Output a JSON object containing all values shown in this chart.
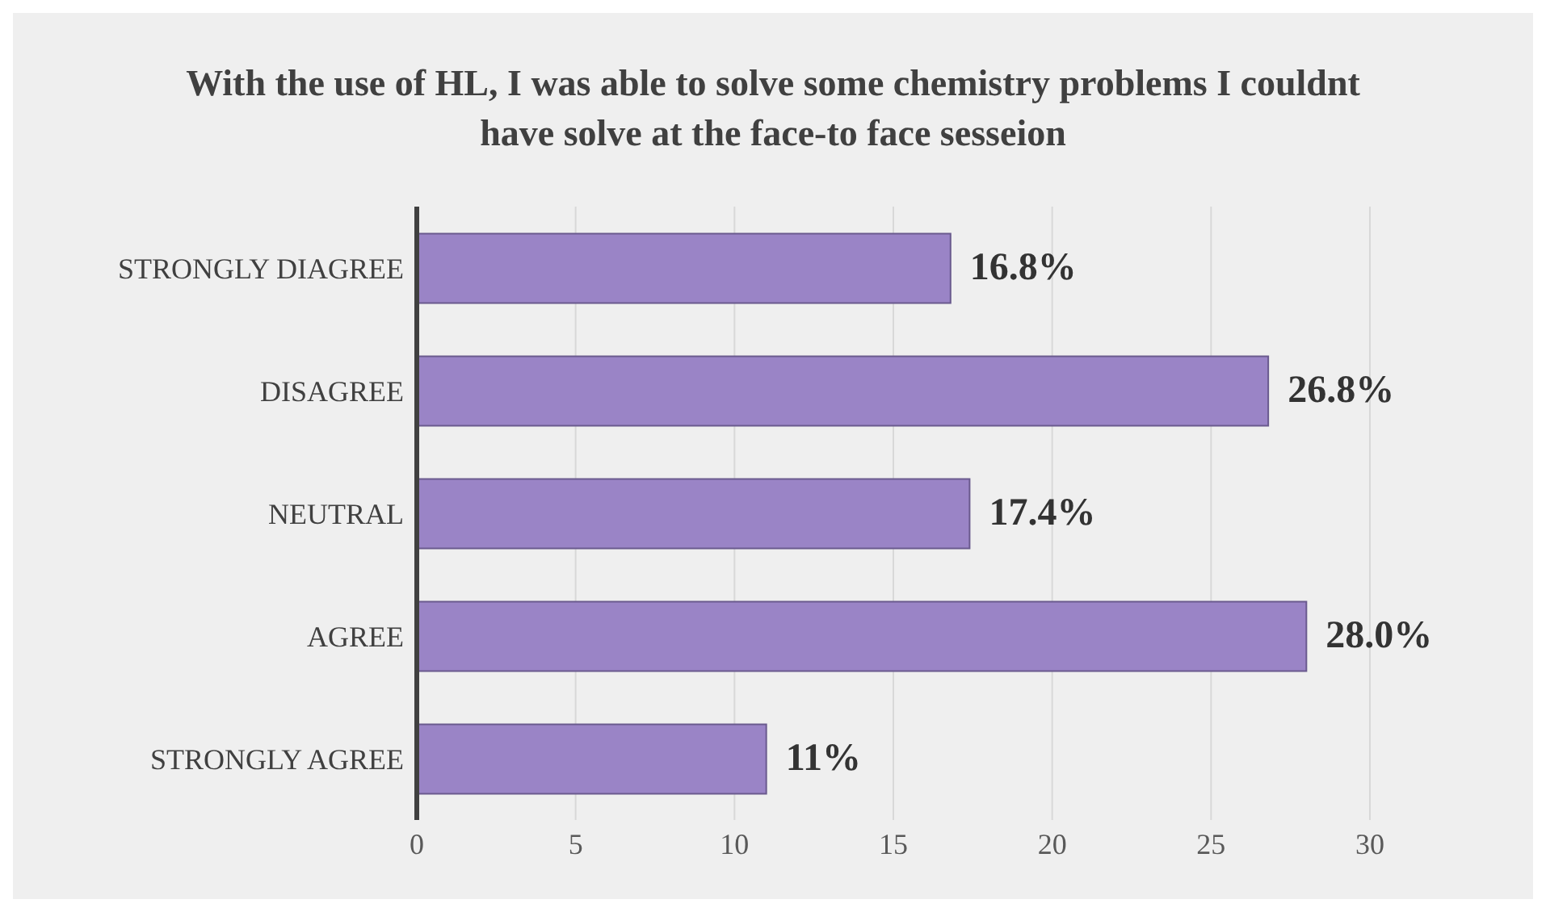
{
  "chart_data": {
    "type": "bar",
    "orientation": "horizontal",
    "title": "With the  use of HL, I was able to solve some chemistry problems I couldnt have solve at the face-to face sesseion",
    "categories": [
      "STRONGLY DIAGREE",
      "DISAGREE",
      "NEUTRAL",
      "AGREE",
      "STRONGLY AGREE"
    ],
    "values": [
      16.8,
      26.8,
      17.4,
      28.0,
      11
    ],
    "value_labels": [
      "16.8%",
      "26.8%",
      "17.4%",
      "28.0%",
      "11%"
    ],
    "color": "#9a84c6",
    "xlim": [
      0,
      30
    ],
    "xticks": [
      0,
      5,
      10,
      15,
      20,
      25,
      30
    ],
    "grid": "x"
  }
}
